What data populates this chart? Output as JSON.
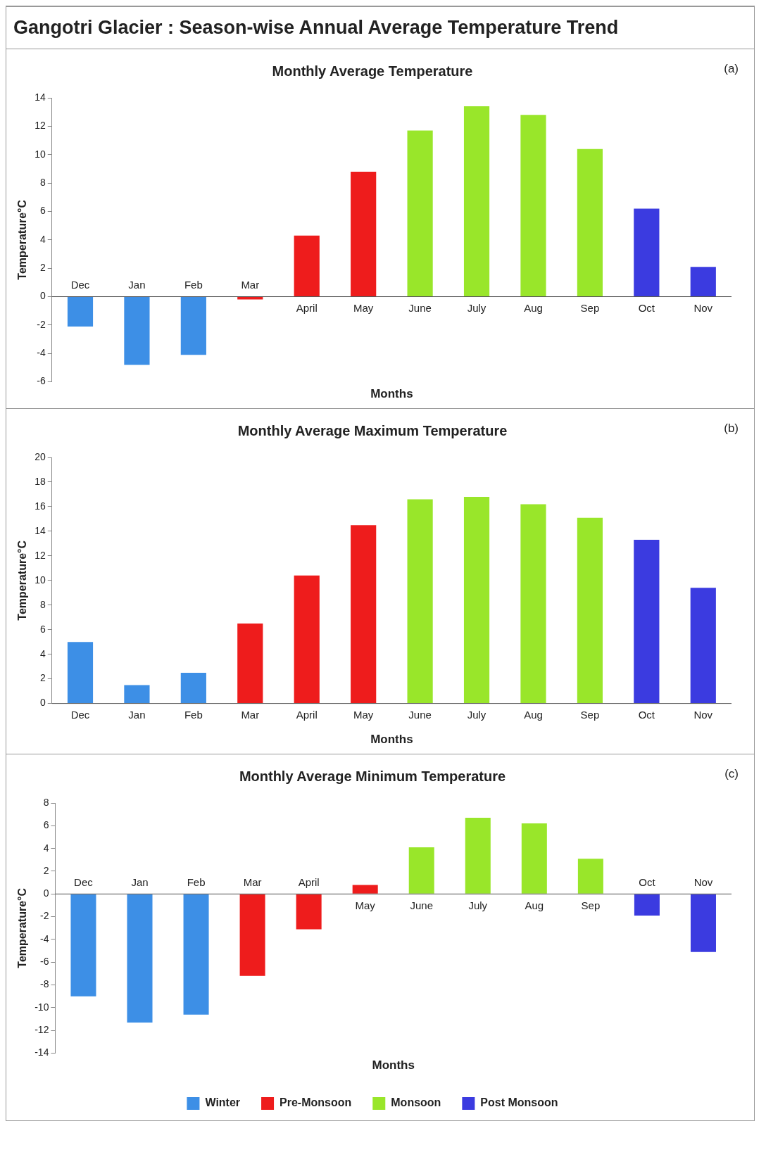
{
  "chart_data": [
    {
      "type": "bar",
      "title": "Gangotri Glacier : Season-wise Annual Average Temperature Trend",
      "subtitle": "Monthly Average Temperature",
      "xlabel": "Months",
      "ylabel": "Temperature°C",
      "annotations": [
        "(a)"
      ],
      "categories": [
        "Dec",
        "Jan",
        "Feb",
        "Mar",
        "April",
        "May",
        "June",
        "July",
        "Aug",
        "Sep",
        "Oct",
        "Nov"
      ],
      "series": [
        {
          "color": "#3d8fe6",
          "values": [
            -2.1,
            -4.8,
            -4.1,
            null,
            null,
            null,
            null,
            null,
            null,
            null,
            null,
            null
          ]
        },
        {
          "color": "#ee1c1c",
          "values": [
            null,
            null,
            null,
            -0.2,
            4.3,
            8.8,
            null,
            null,
            null,
            null,
            null,
            null
          ]
        },
        {
          "color": "#99e62a",
          "values": [
            null,
            null,
            null,
            null,
            null,
            null,
            11.7,
            13.4,
            12.8,
            10.4,
            null,
            null
          ]
        },
        {
          "color": "#3b3be0",
          "values": [
            null,
            null,
            null,
            null,
            null,
            null,
            null,
            null,
            null,
            null,
            6.2,
            2.1
          ]
        }
      ],
      "ylim": [
        -6,
        14
      ],
      "yticks": [
        -6,
        -4,
        -2,
        0,
        2,
        4,
        6,
        8,
        10,
        12,
        14
      ],
      "grid": false,
      "legend": false
    },
    {
      "type": "bar",
      "title": "Monthly Average Maximum Temperature",
      "xlabel": "Months",
      "ylabel": "Temperature°C",
      "annotations": [
        "(b)"
      ],
      "categories": [
        "Dec",
        "Jan",
        "Feb",
        "Mar",
        "April",
        "May",
        "June",
        "July",
        "Aug",
        "Sep",
        "Oct",
        "Nov"
      ],
      "series": [
        {
          "color": "#3d8fe6",
          "values": [
            5.0,
            1.5,
            2.5,
            null,
            null,
            null,
            null,
            null,
            null,
            null,
            null,
            null
          ]
        },
        {
          "color": "#ee1c1c",
          "values": [
            null,
            null,
            null,
            6.5,
            10.4,
            14.5,
            null,
            null,
            null,
            null,
            null,
            null
          ]
        },
        {
          "color": "#99e62a",
          "values": [
            null,
            null,
            null,
            null,
            null,
            null,
            16.6,
            16.8,
            16.2,
            15.1,
            null,
            null
          ]
        },
        {
          "color": "#3b3be0",
          "values": [
            null,
            null,
            null,
            null,
            null,
            null,
            null,
            null,
            null,
            null,
            13.3,
            9.4
          ]
        }
      ],
      "ylim": [
        0,
        20
      ],
      "yticks": [
        0,
        2,
        4,
        6,
        8,
        10,
        12,
        14,
        16,
        18,
        20
      ],
      "grid": false,
      "legend": false
    },
    {
      "type": "bar",
      "title": "Monthly Average Minimum Temperature",
      "xlabel": "Months",
      "ylabel": "Temperature°C",
      "annotations": [
        "(c)"
      ],
      "categories": [
        "Dec",
        "Jan",
        "Feb",
        "Mar",
        "April",
        "May",
        "June",
        "July",
        "Aug",
        "Sep",
        "Oct",
        "Nov"
      ],
      "series": [
        {
          "name": "Winter",
          "color": "#3d8fe6",
          "values": [
            -9.0,
            -11.3,
            -10.6,
            null,
            null,
            null,
            null,
            null,
            null,
            null,
            null,
            null
          ]
        },
        {
          "name": "Pre-Monsoon",
          "color": "#ee1c1c",
          "values": [
            null,
            null,
            null,
            -7.2,
            -3.1,
            0.8,
            null,
            null,
            null,
            null,
            null,
            null
          ]
        },
        {
          "name": "Monsoon",
          "color": "#99e62a",
          "values": [
            null,
            null,
            null,
            null,
            null,
            null,
            4.1,
            6.7,
            6.2,
            3.1,
            null,
            null
          ]
        },
        {
          "name": "Post Monsoon",
          "color": "#3b3be0",
          "values": [
            null,
            null,
            null,
            null,
            null,
            null,
            null,
            null,
            null,
            null,
            -1.9,
            -5.1
          ]
        }
      ],
      "ylim": [
        -14,
        8
      ],
      "yticks": [
        -14,
        -12,
        -10,
        -8,
        -6,
        -4,
        -2,
        0,
        2,
        4,
        6,
        8
      ],
      "grid": false,
      "legend": "bottom"
    }
  ]
}
